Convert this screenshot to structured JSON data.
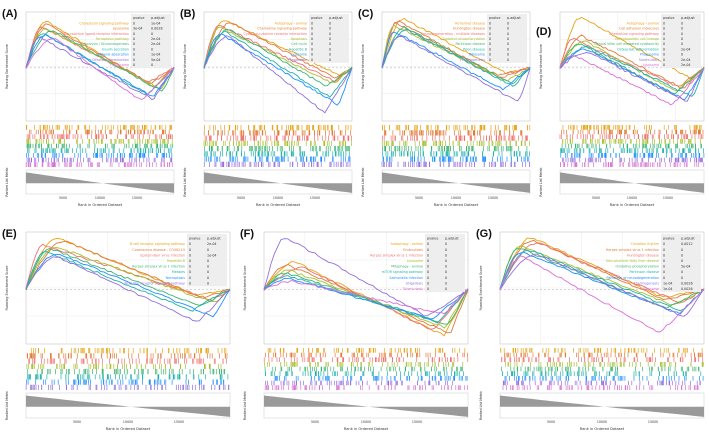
{
  "figure": {
    "colors": [
      "#e8a317",
      "#e07b39",
      "#f07070",
      "#a8c030",
      "#3cb371",
      "#20b2aa",
      "#1e90ff",
      "#9370db",
      "#da70d6",
      "#c8b400"
    ],
    "common": {
      "ylabel": "Running Enrichment Score",
      "xlabel": "Rank in Ordered Dataset",
      "rank_label": "Ranked List Metric",
      "table_header_p": "pvalue",
      "table_header_padj": "p.adjust",
      "x_ticks": [
        "5000",
        "10000",
        "15000"
      ]
    }
  },
  "chart_data": [
    {
      "type": "line",
      "panel": "A",
      "letter": "(A)",
      "title": "",
      "xlabel": "Rank in Ordered Dataset",
      "ylabel": "Running Enrichment Score",
      "legend_position": "top-right",
      "series": [
        {
          "name": "Cholesterol signaling pathway",
          "pvalue": "0",
          "padj": "1e-04",
          "peak": 0.88,
          "trough": -0.35
        },
        {
          "name": "Lysosome",
          "pvalue": "3e-04",
          "padj": "0.0028",
          "peak": 0.82,
          "trough": -0.3
        },
        {
          "name": "Neuroactive ligand-receptor interaction",
          "pvalue": "0",
          "padj": "0",
          "peak": 0.78,
          "trough": -0.28
        },
        {
          "name": "Ferroptosis pathway",
          "pvalue": "0",
          "padj": "2e-04",
          "peak": 0.74,
          "trough": -0.4
        },
        {
          "name": "Glycolysis / Gluconeogenesis",
          "pvalue": "0",
          "padj": "2e-04",
          "peak": 0.7,
          "trough": -0.45
        },
        {
          "name": "Insulin secretion",
          "pvalue": "0",
          "padj": "0",
          "peak": 0.66,
          "trough": -0.5
        },
        {
          "name": "Mineral absorption",
          "pvalue": "0",
          "padj": "1e-04",
          "peak": 0.62,
          "trough": -0.55
        },
        {
          "name": "Olfactory transduction",
          "pvalue": "0",
          "padj": "5e-04",
          "peak": 0.58,
          "trough": -0.6
        },
        {
          "name": "Phagosome",
          "pvalue": "0",
          "padj": "0",
          "peak": 0.55,
          "trough": -0.62
        }
      ]
    },
    {
      "type": "line",
      "panel": "B",
      "letter": "(B)",
      "title": "",
      "xlabel": "Rank in Ordered Dataset",
      "ylabel": "Running Enrichment Score",
      "legend_position": "top-right",
      "series": [
        {
          "name": "Autophagy - animal",
          "pvalue": "0",
          "padj": "0",
          "peak": 0.9,
          "trough": -0.15
        },
        {
          "name": "Chemokine signaling pathway",
          "pvalue": "0",
          "padj": "0",
          "peak": 0.85,
          "trough": -0.2
        },
        {
          "name": "Cytokine-cytokine receptor interaction",
          "pvalue": "0",
          "padj": "0",
          "peak": 0.8,
          "trough": -0.25
        },
        {
          "name": "Apoptosis",
          "pvalue": "0",
          "padj": "0",
          "peak": 0.76,
          "trough": -0.3
        },
        {
          "name": "Cell cycle",
          "pvalue": "0",
          "padj": "0",
          "peak": 0.72,
          "trough": -0.35
        },
        {
          "name": "Hepatitis B",
          "pvalue": "0",
          "padj": "0",
          "peak": 0.68,
          "trough": -0.55
        },
        {
          "name": "Lysosome",
          "pvalue": "0",
          "padj": "0",
          "peak": 0.64,
          "trough": -0.7
        },
        {
          "name": "Phagosome",
          "pvalue": "0",
          "padj": "0",
          "peak": 0.6,
          "trough": -0.85
        }
      ]
    },
    {
      "type": "line",
      "panel": "C",
      "letter": "(C)",
      "title": "",
      "xlabel": "Rank in Ordered Dataset",
      "ylabel": "Running Enrichment Score",
      "legend_position": "top-right",
      "series": [
        {
          "name": "Alzheimer disease",
          "pvalue": "0",
          "padj": "0",
          "peak": 0.92,
          "trough": -0.1
        },
        {
          "name": "Huntington disease",
          "pvalue": "0",
          "padj": "0",
          "peak": 0.88,
          "trough": -0.15
        },
        {
          "name": "Neurodegeneration - multiple diseases",
          "pvalue": "0",
          "padj": "0",
          "peak": 0.84,
          "trough": -0.2
        },
        {
          "name": "Oxidative phosphorylation",
          "pvalue": "0",
          "padj": "0",
          "peak": 0.8,
          "trough": -0.25
        },
        {
          "name": "Parkinson disease",
          "pvalue": "0",
          "padj": "0",
          "peak": 0.76,
          "trough": -0.3
        },
        {
          "name": "Prion disease",
          "pvalue": "0",
          "padj": "0",
          "peak": 0.72,
          "trough": -0.35
        },
        {
          "name": "Ribosome",
          "pvalue": "0",
          "padj": "0",
          "peak": 0.68,
          "trough": -0.4
        },
        {
          "name": "Thermogenesis",
          "pvalue": "0",
          "padj": "0",
          "peak": 0.6,
          "trough": -0.65
        }
      ]
    },
    {
      "type": "line",
      "panel": "D",
      "letter": "(D)",
      "title": "",
      "xlabel": "Rank in Ordered Dataset",
      "ylabel": "Running Enrichment Score",
      "legend_position": "top-right",
      "series": [
        {
          "name": "Autophagy - animal",
          "pvalue": "0",
          "padj": "0",
          "peak": 0.95,
          "trough": -0.2
        },
        {
          "name": "Cell adhesion molecules",
          "pvalue": "0",
          "padj": "0",
          "peak": 0.6,
          "trough": -0.35
        },
        {
          "name": "Chemokine signaling pathway",
          "pvalue": "0",
          "padj": "0",
          "peak": 0.55,
          "trough": -0.4
        },
        {
          "name": "Hematopoietic cell lineage",
          "pvalue": "0",
          "padj": "0",
          "peak": 0.5,
          "trough": -0.45
        },
        {
          "name": "Natural killer cell mediated cytotoxicity",
          "pvalue": "0",
          "padj": "0",
          "peak": 0.45,
          "trough": -0.5
        },
        {
          "name": "Osteoclast differentiation",
          "pvalue": "0",
          "padj": "2e-04",
          "peak": 0.4,
          "trough": -0.55
        },
        {
          "name": "Phagosome",
          "pvalue": "0",
          "padj": "0",
          "peak": 0.35,
          "trough": -0.6
        },
        {
          "name": "Tuberculosis",
          "pvalue": "0",
          "padj": "2e-04",
          "peak": 0.3,
          "trough": -0.65
        },
        {
          "name": "Lysosome",
          "pvalue": "0",
          "padj": "2e-04",
          "peak": 0.25,
          "trough": -0.7
        }
      ]
    },
    {
      "type": "line",
      "panel": "E",
      "letter": "(E)",
      "title": "",
      "xlabel": "Rank in Ordered Dataset",
      "ylabel": "Running Enrichment Score",
      "legend_position": "top-right",
      "series": [
        {
          "name": "B cell receptor signaling pathway",
          "pvalue": "0",
          "padj": "2e-04",
          "peak": 0.95,
          "trough": -0.1
        },
        {
          "name": "Coronavirus disease - COVID-19",
          "pvalue": "0",
          "padj": "0",
          "peak": 0.88,
          "trough": -0.15
        },
        {
          "name": "Epstein-Barr virus infection",
          "pvalue": "0",
          "padj": "1e-04",
          "peak": 0.82,
          "trough": -0.2
        },
        {
          "name": "Hepatitis B",
          "pvalue": "0",
          "padj": "0",
          "peak": 0.78,
          "trough": -0.25
        },
        {
          "name": "Herpes simplex virus 1 infection",
          "pvalue": "0",
          "padj": "0",
          "peak": 0.74,
          "trough": -0.3
        },
        {
          "name": "Measles",
          "pvalue": "0",
          "padj": "0",
          "peak": 0.7,
          "trough": -0.4
        },
        {
          "name": "Necroptosis",
          "pvalue": "0",
          "padj": "0",
          "peak": 0.66,
          "trough": -0.5
        },
        {
          "name": "NOD-like receptor signaling pathway",
          "pvalue": "0",
          "padj": "0",
          "peak": 0.6,
          "trough": -0.6
        }
      ]
    },
    {
      "type": "line",
      "panel": "F",
      "letter": "(F)",
      "title": "",
      "xlabel": "Rank in Ordered Dataset",
      "ylabel": "Running Enrichment Score",
      "legend_position": "top-right",
      "series": [
        {
          "name": "Autophagy - animal",
          "pvalue": "0",
          "padj": "0",
          "peak": 0.5,
          "trough": -0.85
        },
        {
          "name": "Endocytosis",
          "pvalue": "0",
          "padj": "0",
          "peak": 0.45,
          "trough": -0.8
        },
        {
          "name": "Herpes simplex virus 1 infection",
          "pvalue": "0",
          "padj": "0",
          "peak": 0.4,
          "trough": -0.75
        },
        {
          "name": "Lysosome",
          "pvalue": "0",
          "padj": "0",
          "peak": 0.35,
          "trough": -0.7
        },
        {
          "name": "Mitophagy - animal",
          "pvalue": "0",
          "padj": "0",
          "peak": 0.3,
          "trough": -0.65
        },
        {
          "name": "mTOR signaling pathway",
          "pvalue": "0",
          "padj": "0",
          "peak": 0.25,
          "trough": -0.6
        },
        {
          "name": "Salmonella infection",
          "pvalue": "0",
          "padj": "0",
          "peak": 0.2,
          "trough": -0.55
        },
        {
          "name": "Shigellosis",
          "pvalue": "0",
          "padj": "0",
          "peak": 0.95,
          "trough": -0.5
        },
        {
          "name": "Tuberculosis",
          "pvalue": "0",
          "padj": "0",
          "peak": 0.15,
          "trough": -0.45
        }
      ]
    },
    {
      "type": "line",
      "panel": "G",
      "letter": "(G)",
      "title": "",
      "xlabel": "Rank in Ordered Dataset",
      "ylabel": "Running Enrichment Score",
      "legend_position": "top-right",
      "series": [
        {
          "name": "Circadian rhythm",
          "pvalue": "0",
          "padj": "0.0012",
          "peak": 0.95,
          "trough": -0.15
        },
        {
          "name": "Herpes simplex virus 1 infection",
          "pvalue": "0",
          "padj": "0",
          "peak": 0.9,
          "trough": -0.2
        },
        {
          "name": "Huntington disease",
          "pvalue": "0",
          "padj": "0",
          "peak": 0.85,
          "trough": -0.25
        },
        {
          "name": "Non-alcoholic fatty liver disease",
          "pvalue": "0",
          "padj": "0",
          "peak": 0.8,
          "trough": -0.3
        },
        {
          "name": "Oxidative phosphorylation",
          "pvalue": "0",
          "padj": "5e-04",
          "peak": 0.76,
          "trough": -0.35
        },
        {
          "name": "Parkinson disease",
          "pvalue": "0",
          "padj": "0",
          "peak": 0.72,
          "trough": -0.4
        },
        {
          "name": "Pathways of neurodegeneration",
          "pvalue": "0",
          "padj": "0",
          "peak": 0.68,
          "trough": -0.45
        },
        {
          "name": "Thermogenesis",
          "pvalue": "1e-04",
          "padj": "0.0026",
          "peak": 0.64,
          "trough": -0.5
        },
        {
          "name": "Ribosome",
          "pvalue": "1e-04",
          "padj": "0.0026",
          "peak": 0.6,
          "trough": -0.8
        }
      ]
    }
  ]
}
